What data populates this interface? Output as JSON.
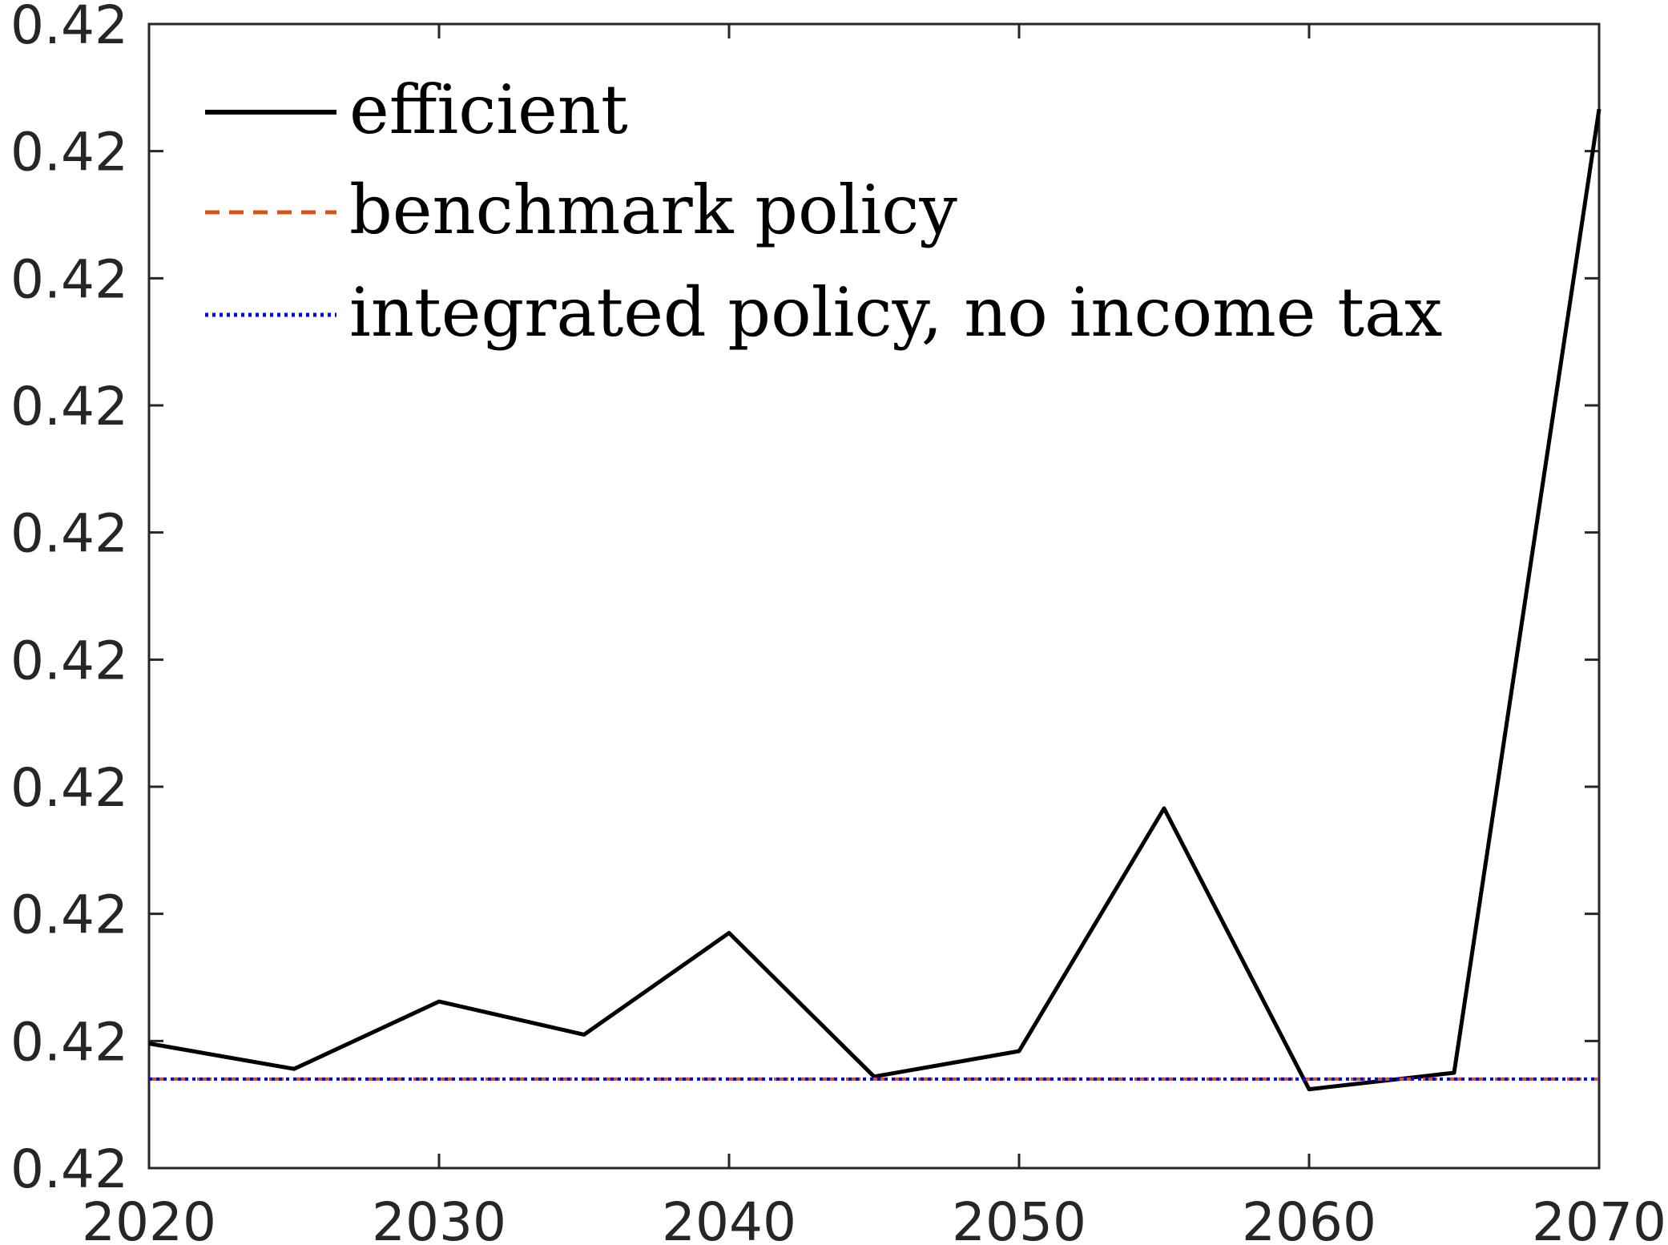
{
  "chart_data": {
    "type": "line",
    "title": "",
    "xlabel": "",
    "ylabel": "",
    "x": [
      2020,
      2025,
      2030,
      2035,
      2040,
      2045,
      2050,
      2055,
      2060,
      2065,
      2070
    ],
    "xlim": [
      2020,
      2070
    ],
    "ylim": [
      0,
      9
    ],
    "x_ticks": [
      2020,
      2030,
      2040,
      2050,
      2060,
      2070
    ],
    "y_tick_labels": [
      "0.42",
      "0.42",
      "0.42",
      "0.42",
      "0.42",
      "0.42",
      "0.42",
      "0.42",
      "0.42",
      "0.42"
    ],
    "y_values_note": "",
    "series": [
      {
        "name": "efficient",
        "color": "#000000",
        "style": "solid",
        "values": [
          0.98,
          0.78,
          1.31,
          1.05,
          1.85,
          0.72,
          0.92,
          2.83,
          0.62,
          0.75,
          8.33
        ]
      },
      {
        "name": "benchmark policy",
        "color": "#D95319",
        "style": "dashed",
        "values": [
          0.7,
          0.7,
          0.7,
          0.7,
          0.7,
          0.7,
          0.7,
          0.7,
          0.7,
          0.7,
          0.7
        ]
      },
      {
        "name": "integrated policy, no income tax",
        "color": "#0000FF",
        "style": "dotted",
        "values": [
          0.7,
          0.7,
          0.7,
          0.7,
          0.7,
          0.7,
          0.7,
          0.7,
          0.7,
          0.7,
          0.7
        ]
      }
    ],
    "legend": {
      "position": "top-left",
      "box": false
    },
    "grid": false
  }
}
